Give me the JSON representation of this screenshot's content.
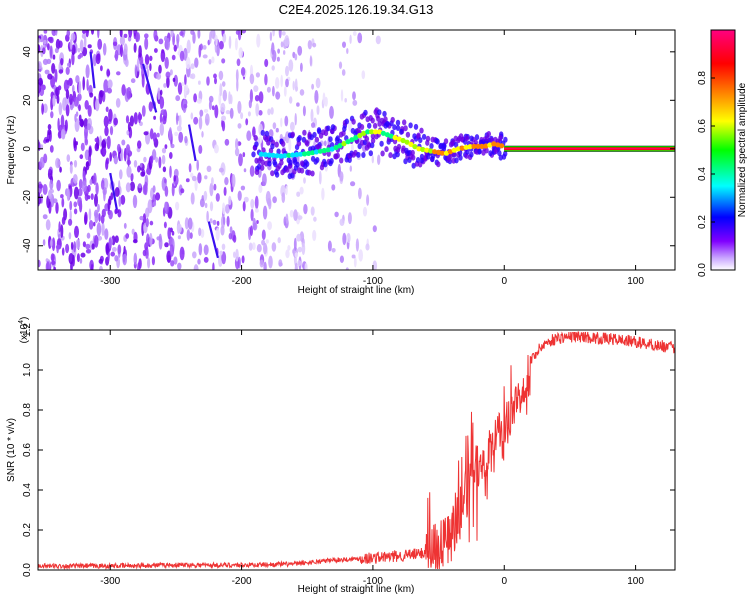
{
  "title": "C2E4.2025.126.19.34.G13",
  "chart_data": [
    {
      "type": "heatmap",
      "xlabel": "Height of straight line (km)",
      "ylabel": "Frequency (Hz)",
      "xlim": [
        -355,
        130
      ],
      "ylim": [
        -50,
        49
      ],
      "x_ticks": [
        -300,
        -200,
        -100,
        0,
        100
      ],
      "y_ticks": [
        -40,
        -20,
        0,
        20,
        40
      ],
      "colorbar": {
        "label": "Normalized spectral amplitude",
        "range": [
          0,
          1
        ],
        "ticks": [
          "0.0",
          "0.2",
          "0.4",
          "0.6",
          "0.8"
        ],
        "ticks_values": [
          0,
          0.2,
          0.4,
          0.6,
          0.8
        ],
        "colors": [
          "#ffffff",
          "#8000ff",
          "#0000ff",
          "#00ffff",
          "#00ff00",
          "#ffff00",
          "#ff8000",
          "#ff0000",
          "#ff0080"
        ]
      },
      "signal_track": {
        "x": [
          -190,
          -170,
          -150,
          -130,
          -115,
          -105,
          -95,
          -85,
          -75,
          -65,
          -55,
          -45,
          -35,
          -25,
          -15,
          -8,
          0,
          130
        ],
        "y": [
          -2,
          -3,
          -2,
          0,
          4,
          7,
          7,
          5,
          3,
          0,
          -1,
          -2,
          0,
          1,
          1,
          2,
          1,
          0
        ]
      }
    },
    {
      "type": "line",
      "xlabel": "Height of straight line (km)",
      "ylabel": "SNR (10 * v/v)",
      "scale_note_base": "(x10",
      "scale_note_exp": "4",
      "scale_note_end": ")",
      "xlim": [
        -355,
        130
      ],
      "ylim": [
        0,
        1.2
      ],
      "x_ticks": [
        -300,
        -200,
        -100,
        0,
        100
      ],
      "y_ticks": [
        "0.0",
        "0.2",
        "0.4",
        "0.6",
        "0.8",
        "1.0",
        "1.2"
      ],
      "y_ticks_values": [
        0,
        0.2,
        0.4,
        0.6,
        0.8,
        1.0,
        1.2
      ],
      "series": [
        {
          "color": "#ee3333",
          "x": [
            -355,
            -300,
            -250,
            -200,
            -160,
            -130,
            -100,
            -80,
            -65,
            -55,
            -45,
            -38,
            -30,
            -25,
            -20,
            -15,
            -10,
            -5,
            0,
            5,
            10,
            15,
            20,
            30,
            40,
            55,
            70,
            90,
            110,
            130
          ],
          "y": [
            0.02,
            0.02,
            0.025,
            0.025,
            0.03,
            0.05,
            0.06,
            0.07,
            0.08,
            0.1,
            0.15,
            0.2,
            0.35,
            0.45,
            0.5,
            0.55,
            0.62,
            0.68,
            0.72,
            0.78,
            0.85,
            0.93,
            1.05,
            1.13,
            1.16,
            1.17,
            1.16,
            1.15,
            1.13,
            1.11
          ]
        }
      ]
    }
  ]
}
